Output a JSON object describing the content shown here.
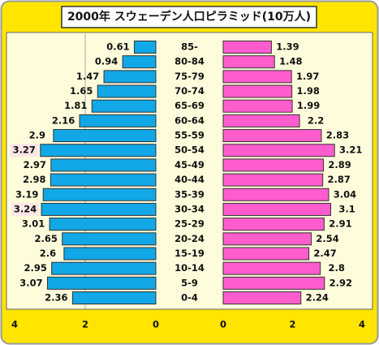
{
  "chart_data": {
    "type": "pyramid",
    "title": "2000年 スウェーデン人口ピラミッド(10万人)",
    "categories": [
      "85-",
      "80-84",
      "75-79",
      "70-74",
      "65-69",
      "60-64",
      "55-59",
      "50-54",
      "45-49",
      "40-44",
      "35-39",
      "30-34",
      "25-29",
      "20-24",
      "15-19",
      "10-14",
      "5-9",
      "0-4"
    ],
    "series": [
      {
        "color": "#12a7e6",
        "values": [
          0.61,
          0.94,
          1.47,
          1.65,
          1.81,
          2.16,
          2.9,
          3.27,
          2.97,
          2.98,
          3.19,
          3.24,
          3.01,
          2.65,
          2.6,
          2.95,
          3.07,
          2.36
        ]
      },
      {
        "color": "#ff5ccd",
        "values": [
          1.39,
          1.48,
          1.97,
          1.98,
          1.99,
          2.2,
          2.83,
          3.21,
          2.89,
          2.87,
          3.04,
          3.1,
          2.91,
          2.54,
          2.47,
          2.8,
          2.92,
          2.24
        ]
      }
    ],
    "xlim": [
      0,
      4
    ],
    "xticks": [
      0,
      2,
      4
    ]
  }
}
